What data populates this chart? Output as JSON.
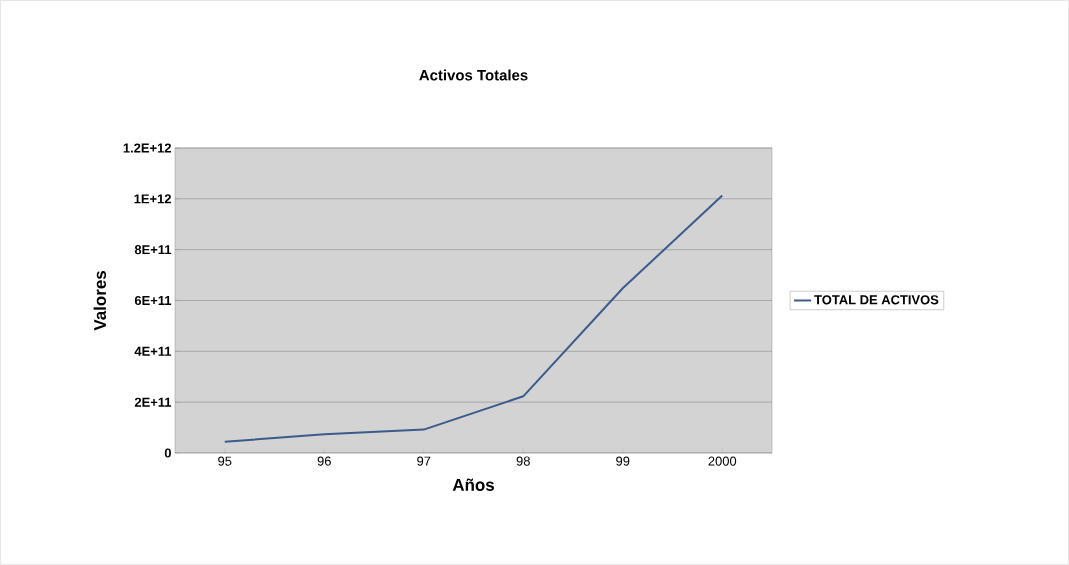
{
  "chart_data": {
    "type": "line",
    "title": "Activos Totales",
    "xlabel": "Años",
    "ylabel": "Valores",
    "categories": [
      "95",
      "96",
      "97",
      "98",
      "99",
      "2000"
    ],
    "series": [
      {
        "name": "TOTAL DE ACTIVOS",
        "color": "#3b5b8c",
        "values": [
          44000000000,
          74000000000,
          92000000000,
          223000000000,
          648000000000,
          1013000000000
        ]
      }
    ],
    "ylim": [
      0,
      1200000000000
    ],
    "yticks": [
      0,
      {
        "value": 200000000000,
        "label": "2E+11"
      },
      {
        "value": 400000000000,
        "label": "4E+11"
      },
      {
        "value": 600000000000,
        "label": "6E+11"
      },
      {
        "value": 800000000000,
        "label": "8E+11"
      },
      {
        "value": 1000000000000,
        "label": "1E+12"
      },
      {
        "value": 1200000000000,
        "label": "1.2E+12"
      }
    ],
    "grid": "y",
    "legend": "right",
    "marker": "none",
    "line_style": "solid"
  }
}
